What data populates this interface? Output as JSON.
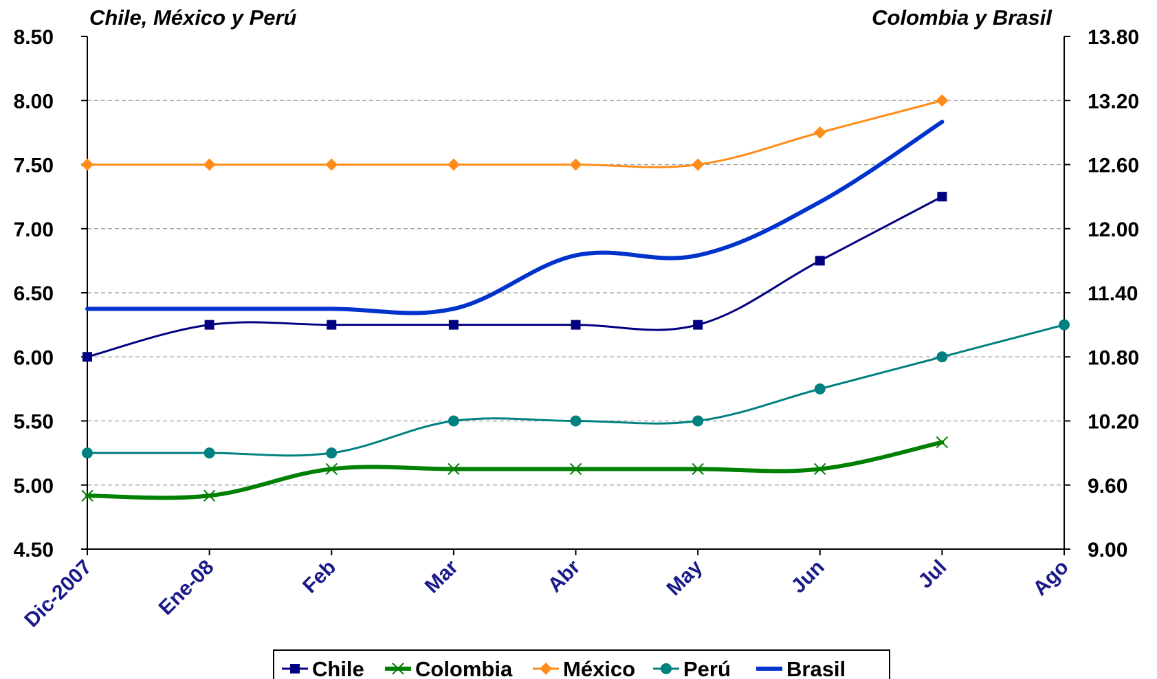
{
  "chart_data": {
    "type": "line",
    "title": "",
    "y_left_label": "Chile, México y Perú",
    "y_right_label": "Colombia y Brasil",
    "categories": [
      "Dic-2007",
      "Ene-08",
      "Feb",
      "Mar",
      "Abr",
      "May",
      "Jun",
      "Jul",
      "Ago"
    ],
    "y_left": {
      "range": [
        4.5,
        8.5
      ],
      "ticks": [
        "4.50",
        "5.00",
        "5.50",
        "6.00",
        "6.50",
        "7.00",
        "7.50",
        "8.00",
        "8.50"
      ]
    },
    "y_right": {
      "range": [
        9.0,
        13.8
      ],
      "ticks": [
        "9.00",
        "9.60",
        "10.20",
        "10.80",
        "11.40",
        "12.00",
        "12.60",
        "13.20",
        "13.80"
      ]
    },
    "grid": true,
    "legend_position": "bottom",
    "series": [
      {
        "name": "Chile",
        "axis": "left",
        "color": "#000080",
        "marker": "square",
        "values": [
          6.0,
          6.25,
          6.25,
          6.25,
          6.25,
          6.25,
          6.75,
          7.25,
          null
        ]
      },
      {
        "name": "Colombia",
        "axis": "right",
        "color": "#008000",
        "marker": "x",
        "values": [
          9.5,
          9.5,
          9.75,
          9.75,
          9.75,
          9.75,
          9.75,
          10.0,
          null
        ]
      },
      {
        "name": "México",
        "axis": "left",
        "color": "#ff8c1a",
        "marker": "diamond",
        "values": [
          7.5,
          7.5,
          7.5,
          7.5,
          7.5,
          7.5,
          7.75,
          8.0,
          null
        ]
      },
      {
        "name": "Perú",
        "axis": "left",
        "color": "#008080",
        "marker": "circle",
        "values": [
          5.25,
          5.25,
          5.25,
          5.5,
          5.5,
          5.5,
          5.75,
          6.0,
          6.25
        ]
      },
      {
        "name": "Brasil",
        "axis": "right",
        "color": "#0033cc",
        "marker": "none",
        "values": [
          11.25,
          11.25,
          11.25,
          11.25,
          11.75,
          11.75,
          12.25,
          13.0,
          null
        ]
      }
    ]
  }
}
